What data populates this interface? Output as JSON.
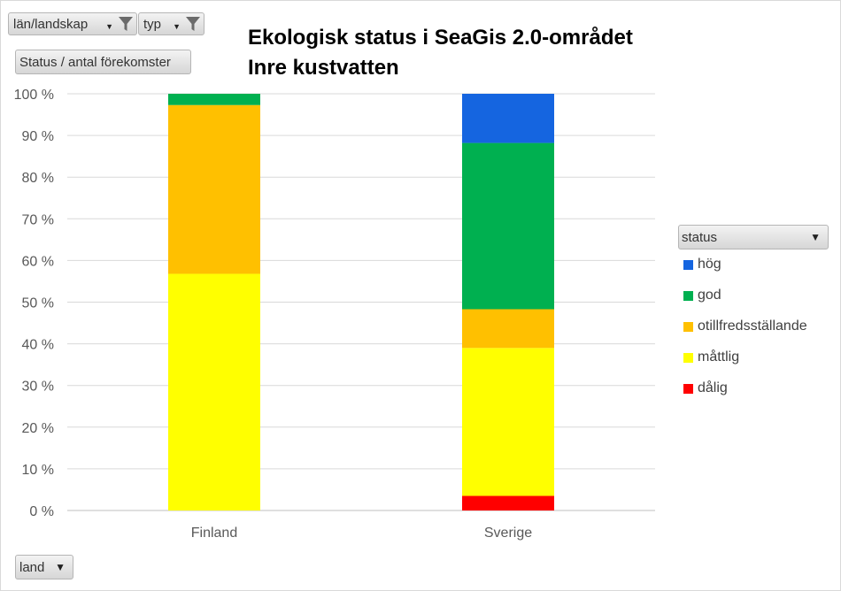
{
  "filters": [
    {
      "label": "län/landskap"
    },
    {
      "label": "typ"
    }
  ],
  "value_field": {
    "label": "Status / antal förekomster"
  },
  "axis_field": {
    "label": "land"
  },
  "legend": {
    "title": "status",
    "items": [
      {
        "label": "hög",
        "color": "#1565e0"
      },
      {
        "label": "god",
        "color": "#00b050"
      },
      {
        "label": "otillfredsställande",
        "color": "#ffc000"
      },
      {
        "label": "måttlig",
        "color": "#ffff00"
      },
      {
        "label": "dålig",
        "color": "#ff0000"
      }
    ]
  },
  "chart_data": {
    "type": "bar",
    "stacked": "percent",
    "title": "Ekologisk status i SeaGis 2.0-området",
    "subtitle": "Inre kustvatten",
    "categories": [
      "Finland",
      "Sverige"
    ],
    "series": [
      {
        "name": "dålig",
        "color": "#ff0000",
        "values": [
          0,
          3.5
        ]
      },
      {
        "name": "måttlig",
        "color": "#ffff00",
        "values": [
          56.8,
          35.5
        ]
      },
      {
        "name": "otillfredsställande",
        "color": "#ffc000",
        "values": [
          40.5,
          9.3
        ]
      },
      {
        "name": "god",
        "color": "#00b050",
        "values": [
          2.7,
          39.9
        ]
      },
      {
        "name": "hög",
        "color": "#1565e0",
        "values": [
          0,
          11.8
        ]
      }
    ],
    "y_ticks": [
      "0 %",
      "10 %",
      "20 %",
      "30 %",
      "40 %",
      "50 %",
      "60 %",
      "70 %",
      "80 %",
      "90 %",
      "100 %"
    ],
    "ylim": [
      0,
      100
    ],
    "grid": true,
    "legend_position": "right"
  }
}
